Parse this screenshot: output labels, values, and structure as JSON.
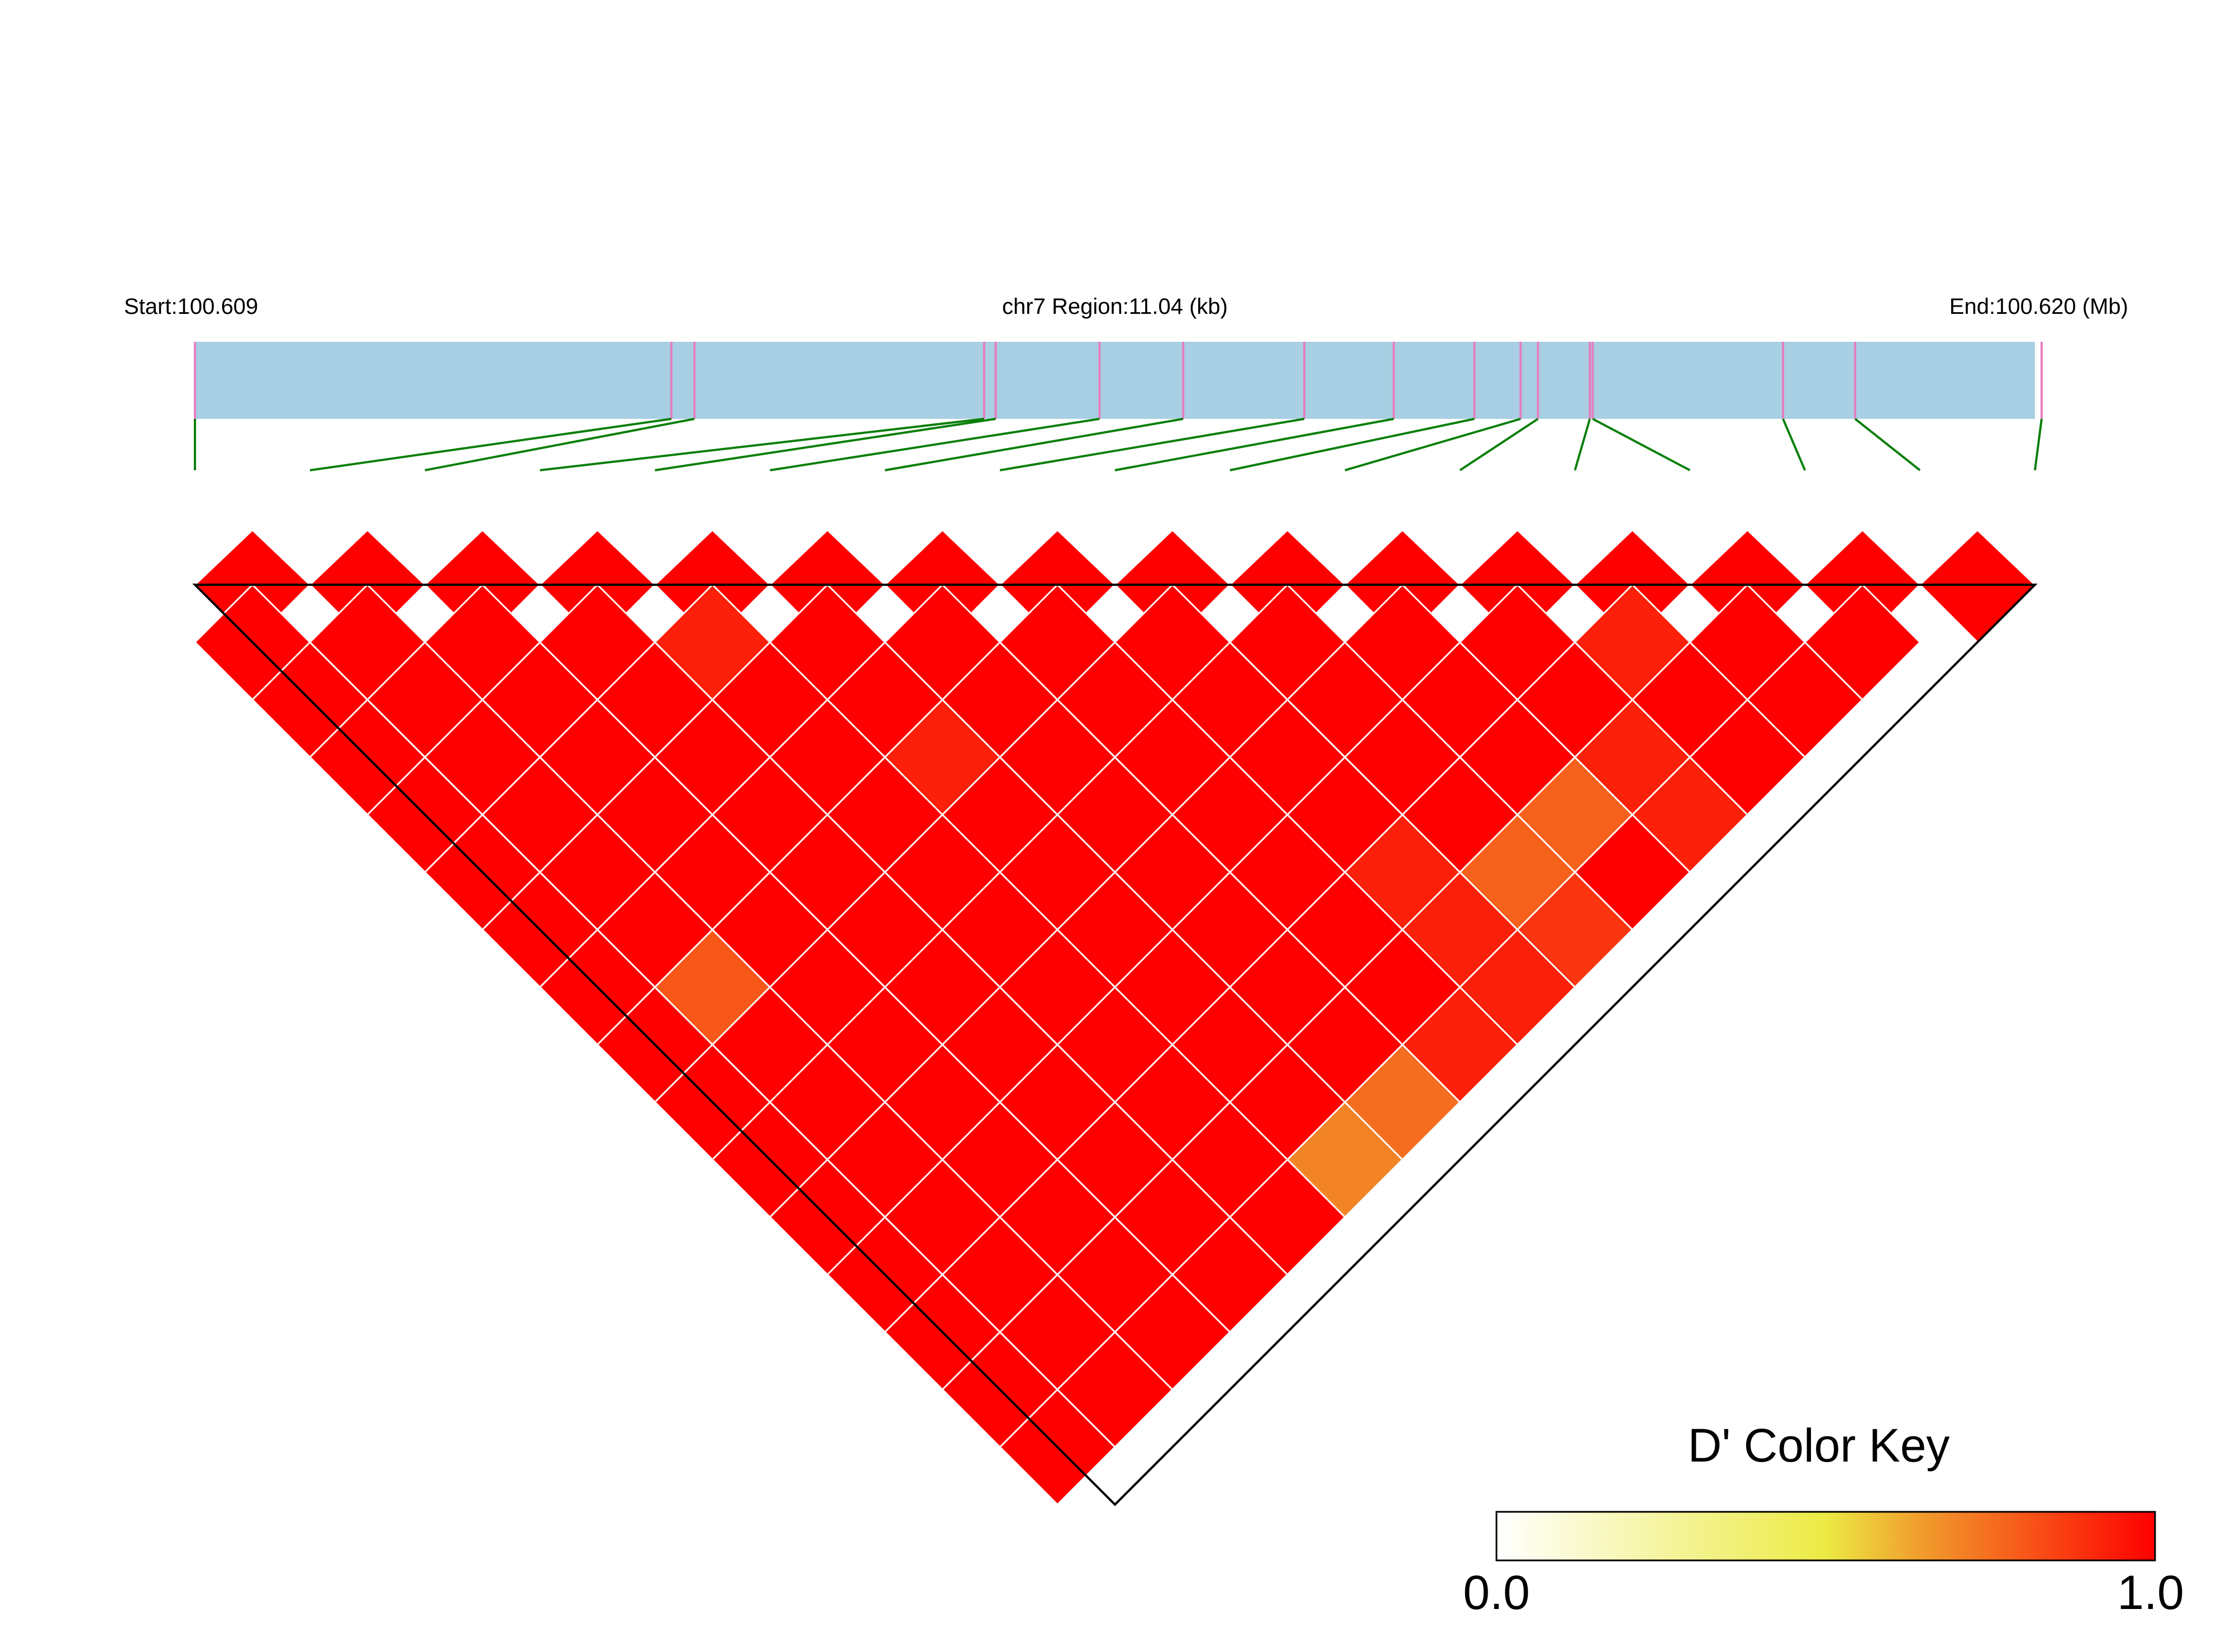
{
  "header": {
    "start_label": "Start:100.609",
    "region_label": "chr7 Region:11.04 (kb)",
    "end_label": "End:100.620 (Mb)"
  },
  "colors": {
    "track_fill": "#a8cfe3",
    "snp_marker": "#e67ec2",
    "connector_line": "#0b7f0b",
    "cell_grid": "#ffffff",
    "outline": "#000000"
  },
  "chart_data": {
    "type": "heatmap",
    "chromosome": "chr7",
    "region_start_mb": 100.609,
    "region_end_mb": 100.62,
    "region_length_kb": 11.04,
    "snp_positions_mb": [
      100.609,
      100.611848,
      100.611986,
      100.613718,
      100.613787,
      100.614408,
      100.614908,
      100.615632,
      100.616167,
      100.616649,
      100.616925,
      100.617029,
      100.617339,
      100.617356,
      100.618494,
      100.618925,
      100.62004
    ],
    "dprime_scale": [
      0,
      1
    ],
    "default_dprime": 1.0,
    "reduced_pairs": [
      {
        "i": 4,
        "j": 6,
        "dprime": 0.93
      },
      {
        "i": 5,
        "j": 9,
        "dprime": 0.93
      },
      {
        "i": 1,
        "j": 9,
        "dprime": 0.8
      },
      {
        "i": 12,
        "j": 14,
        "dprime": 0.93
      },
      {
        "i": 11,
        "j": 15,
        "dprime": 0.93
      },
      {
        "i": 11,
        "j": 16,
        "dprime": 0.93
      },
      {
        "i": 8,
        "j": 16,
        "dprime": 0.93
      },
      {
        "i": 8,
        "j": 15,
        "dprime": 0.93
      },
      {
        "i": 10,
        "j": 15,
        "dprime": 0.78
      },
      {
        "i": 9,
        "j": 15,
        "dprime": 0.78
      },
      {
        "i": 9,
        "j": 16,
        "dprime": 0.88
      },
      {
        "i": 8,
        "j": 14,
        "dprime": 0.93
      },
      {
        "i": 7,
        "j": 16,
        "dprime": 0.93
      },
      {
        "i": 6,
        "j": 16,
        "dprime": 0.75
      },
      {
        "i": 5,
        "j": 16,
        "dprime": 0.7
      }
    ]
  },
  "legend": {
    "title": "D' Color Key",
    "min_label": "0.0",
    "max_label": "1.0"
  }
}
